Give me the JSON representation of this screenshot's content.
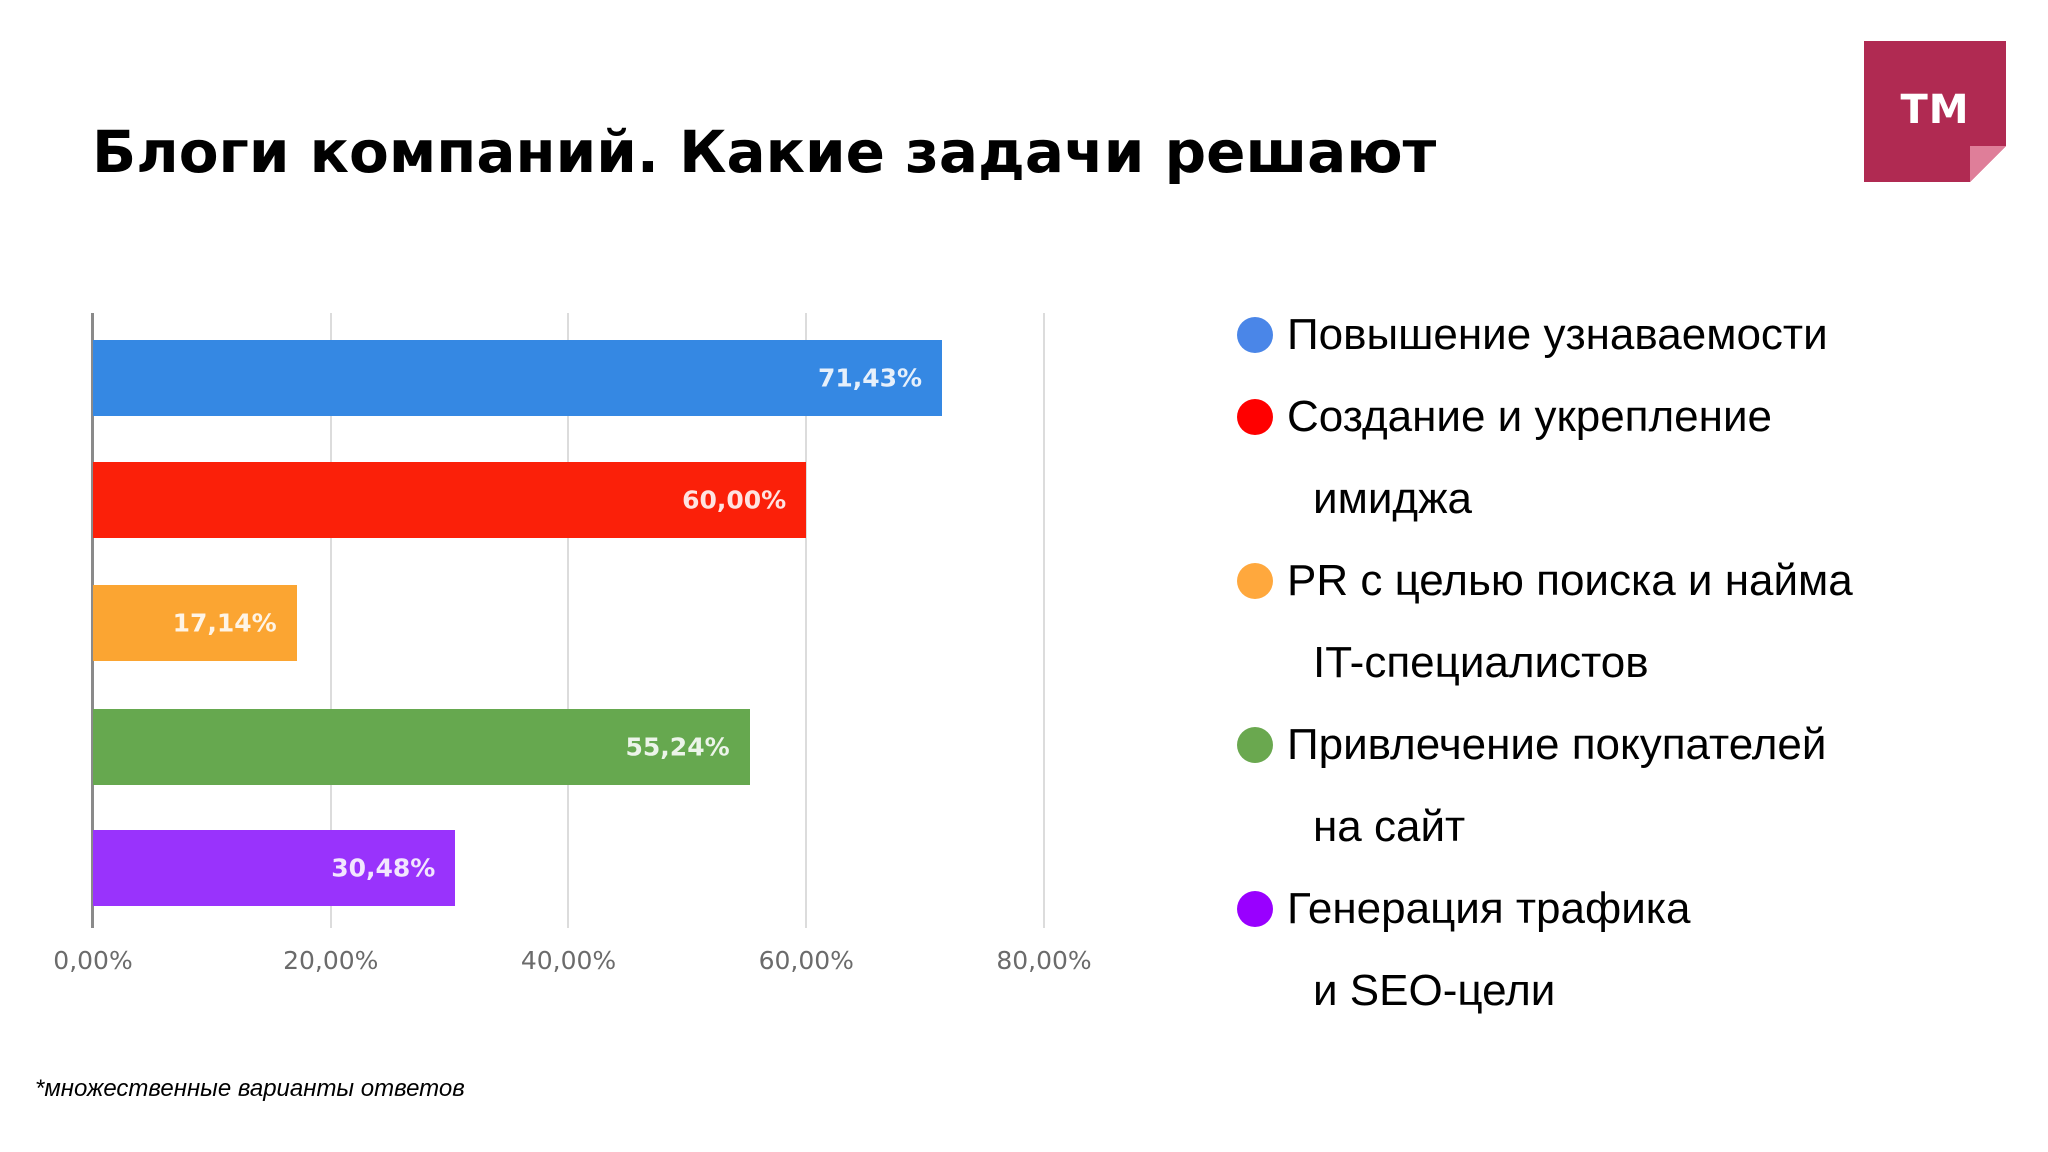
{
  "slide": {
    "title": "Блоги компаний. Какие задачи решают",
    "footnote": "*множественные варианты ответов"
  },
  "logo": {
    "text": "TM",
    "color": "#b02a52",
    "fold_color": "#df7e99"
  },
  "chart_data": {
    "type": "bar",
    "orientation": "horizontal",
    "title": "Блоги компаний. Какие задачи решают",
    "xlabel": "",
    "ylabel": "",
    "xlim": [
      0,
      80
    ],
    "x_ticks": [
      "0,00%",
      "20,00%",
      "40,00%",
      "60,00%",
      "80,00%"
    ],
    "grid": true,
    "legend_position": "right",
    "categories": [
      "Повышение узнаваемости",
      "Создание и укрепление имиджа",
      "PR с целью поиска и найма IT-специалистов",
      "Привлечение покупателей на сайт",
      "Генерация трафика и SEO-цели"
    ],
    "values": [
      71.43,
      60.0,
      17.14,
      55.24,
      30.48
    ],
    "value_labels": [
      "71,43%",
      "60,00%",
      "17,14%",
      "55,24%",
      "30,48%"
    ],
    "colors": [
      "#3588e3",
      "#fb2009",
      "#fba532",
      "#66a84f",
      "#9933fc"
    ],
    "annotations": [
      "*множественные варианты ответов"
    ]
  },
  "chart": {
    "ticks": [
      {
        "label": "0,00%",
        "value": 0
      },
      {
        "label": "20,00%",
        "value": 20
      },
      {
        "label": "40,00%",
        "value": 40
      },
      {
        "label": "60,00%",
        "value": 60
      },
      {
        "label": "80,00%",
        "value": 80
      }
    ],
    "bars": [
      {
        "label": "71,43%",
        "value": 71.43,
        "color": "#3588e3"
      },
      {
        "label": "60,00%",
        "value": 60.0,
        "color": "#fb2009"
      },
      {
        "label": "17,14%",
        "value": 17.14,
        "color": "#fba532"
      },
      {
        "label": "55,24%",
        "value": 55.24,
        "color": "#66a84f"
      },
      {
        "label": "30,48%",
        "value": 30.48,
        "color": "#9933fc"
      }
    ]
  },
  "legend": {
    "items": [
      {
        "lines": [
          "Повышение узнаваемости"
        ],
        "color": "#4a86e8"
      },
      {
        "lines": [
          "Создание и укрепление",
          "имиджа"
        ],
        "color": "#ff0000"
      },
      {
        "lines": [
          "PR с целью поиска и найма",
          "IT-специалистов"
        ],
        "color": "#ffa83d"
      },
      {
        "lines": [
          "Привлечение покупателей",
          "на сайт"
        ],
        "color": "#6aa84f"
      },
      {
        "lines": [
          "Генерация трафика",
          "и SEO-цели"
        ],
        "color": "#9900ff"
      }
    ]
  }
}
